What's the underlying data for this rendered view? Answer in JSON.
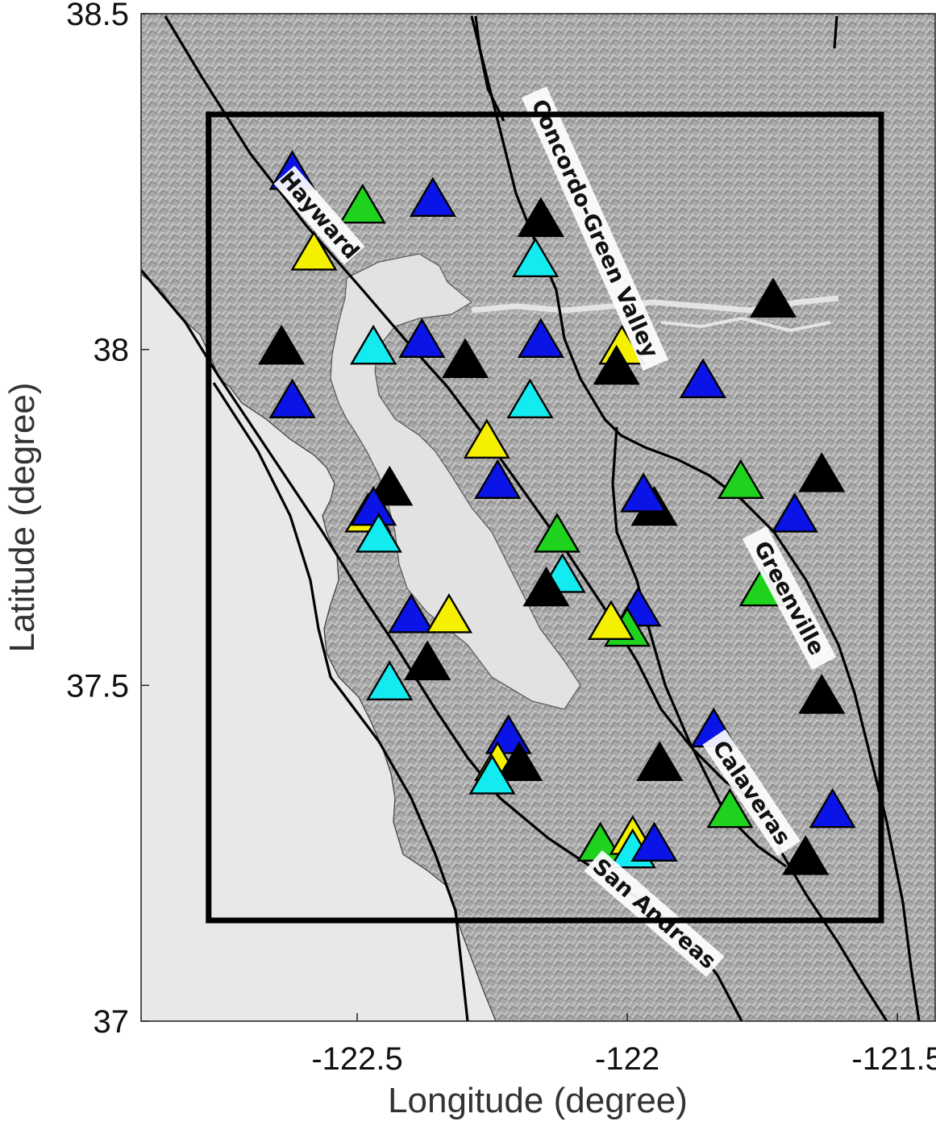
{
  "chart_data": {
    "type": "map",
    "xlabel": "Longitude (degree)",
    "ylabel": "Latitude (degree)",
    "xlim": [
      -122.9,
      -121.43
    ],
    "ylim": [
      37.0,
      38.5
    ],
    "x_ticks": [
      {
        "value": -122.5,
        "label": "-122.5"
      },
      {
        "value": -122.0,
        "label": "-122"
      },
      {
        "value": -121.5,
        "label": "-121.5"
      }
    ],
    "y_ticks": [
      {
        "value": 37.0,
        "label": "37"
      },
      {
        "value": 37.5,
        "label": "37.5"
      },
      {
        "value": 38.0,
        "label": "38"
      },
      {
        "value": 38.5,
        "label": "38.5"
      }
    ],
    "study_region": {
      "lon_min": -122.775,
      "lon_max": -121.53,
      "lat_min": 37.15,
      "lat_max": 38.35
    },
    "colors": {
      "blue": "#0a14e6",
      "green": "#1ed21e",
      "cyan": "#14ebf0",
      "yellow": "#f5f000",
      "black": "#000000",
      "land": "#a6a6a6",
      "water": "#e8e8e8"
    },
    "fault_labels": [
      {
        "text": "Hayward",
        "lon": -122.57,
        "lat": 38.2,
        "angle": 49
      },
      {
        "text": "Concordo-Green Valley",
        "lon": -122.06,
        "lat": 38.18,
        "angle": 66
      },
      {
        "text": "Greenville",
        "lon": -121.7,
        "lat": 37.63,
        "angle": 62
      },
      {
        "text": "Calaveras",
        "lon": -121.77,
        "lat": 37.34,
        "angle": 56
      },
      {
        "text": "San Andreas",
        "lon": -121.95,
        "lat": 37.16,
        "angle": 41
      }
    ],
    "stations": [
      {
        "lon": -122.62,
        "lat": 38.26,
        "color": "blue"
      },
      {
        "lon": -122.49,
        "lat": 38.21,
        "color": "green"
      },
      {
        "lon": -122.36,
        "lat": 38.22,
        "color": "blue"
      },
      {
        "lon": -122.16,
        "lat": 38.19,
        "color": "black"
      },
      {
        "lon": -122.58,
        "lat": 38.14,
        "color": "yellow"
      },
      {
        "lon": -122.17,
        "lat": 38.13,
        "color": "cyan"
      },
      {
        "lon": -121.73,
        "lat": 38.07,
        "color": "black"
      },
      {
        "lon": -122.64,
        "lat": 38.0,
        "color": "black"
      },
      {
        "lon": -122.47,
        "lat": 38.0,
        "color": "cyan"
      },
      {
        "lon": -122.38,
        "lat": 38.01,
        "color": "blue"
      },
      {
        "lon": -122.3,
        "lat": 37.98,
        "color": "black"
      },
      {
        "lon": -122.16,
        "lat": 38.01,
        "color": "blue"
      },
      {
        "lon": -122.01,
        "lat": 38.0,
        "color": "yellow"
      },
      {
        "lon": -122.02,
        "lat": 37.97,
        "color": "black"
      },
      {
        "lon": -121.86,
        "lat": 37.95,
        "color": "blue"
      },
      {
        "lon": -122.62,
        "lat": 37.92,
        "color": "blue"
      },
      {
        "lon": -122.18,
        "lat": 37.92,
        "color": "cyan"
      },
      {
        "lon": -122.26,
        "lat": 37.86,
        "color": "yellow"
      },
      {
        "lon": -122.24,
        "lat": 37.8,
        "color": "blue"
      },
      {
        "lon": -121.79,
        "lat": 37.8,
        "color": "green"
      },
      {
        "lon": -121.64,
        "lat": 37.81,
        "color": "black"
      },
      {
        "lon": -122.44,
        "lat": 37.79,
        "color": "black"
      },
      {
        "lon": -121.95,
        "lat": 37.76,
        "color": "black"
      },
      {
        "lon": -121.97,
        "lat": 37.78,
        "color": "blue"
      },
      {
        "lon": -121.69,
        "lat": 37.75,
        "color": "blue"
      },
      {
        "lon": -122.48,
        "lat": 37.75,
        "color": "yellow"
      },
      {
        "lon": -122.47,
        "lat": 37.76,
        "color": "blue"
      },
      {
        "lon": -122.46,
        "lat": 37.72,
        "color": "cyan"
      },
      {
        "lon": -122.13,
        "lat": 37.72,
        "color": "green"
      },
      {
        "lon": -122.12,
        "lat": 37.66,
        "color": "cyan"
      },
      {
        "lon": -122.15,
        "lat": 37.64,
        "color": "black"
      },
      {
        "lon": -121.75,
        "lat": 37.64,
        "color": "green"
      },
      {
        "lon": -122.4,
        "lat": 37.6,
        "color": "blue"
      },
      {
        "lon": -122.33,
        "lat": 37.6,
        "color": "yellow"
      },
      {
        "lon": -121.98,
        "lat": 37.61,
        "color": "blue"
      },
      {
        "lon": -122.0,
        "lat": 37.58,
        "color": "green"
      },
      {
        "lon": -122.03,
        "lat": 37.59,
        "color": "yellow"
      },
      {
        "lon": -122.37,
        "lat": 37.53,
        "color": "black"
      },
      {
        "lon": -122.44,
        "lat": 37.5,
        "color": "cyan"
      },
      {
        "lon": -121.64,
        "lat": 37.48,
        "color": "black"
      },
      {
        "lon": -121.84,
        "lat": 37.43,
        "color": "blue"
      },
      {
        "lon": -122.22,
        "lat": 37.42,
        "color": "blue"
      },
      {
        "lon": -122.24,
        "lat": 37.38,
        "color": "yellow"
      },
      {
        "lon": -122.2,
        "lat": 37.38,
        "color": "black"
      },
      {
        "lon": -122.25,
        "lat": 37.36,
        "color": "cyan"
      },
      {
        "lon": -121.94,
        "lat": 37.38,
        "color": "black"
      },
      {
        "lon": -121.81,
        "lat": 37.31,
        "color": "green"
      },
      {
        "lon": -121.62,
        "lat": 37.31,
        "color": "blue"
      },
      {
        "lon": -122.05,
        "lat": 37.26,
        "color": "green"
      },
      {
        "lon": -121.99,
        "lat": 37.27,
        "color": "yellow"
      },
      {
        "lon": -121.99,
        "lat": 37.25,
        "color": "cyan"
      },
      {
        "lon": -121.95,
        "lat": 37.26,
        "color": "blue"
      },
      {
        "lon": -121.67,
        "lat": 37.24,
        "color": "black"
      }
    ]
  }
}
